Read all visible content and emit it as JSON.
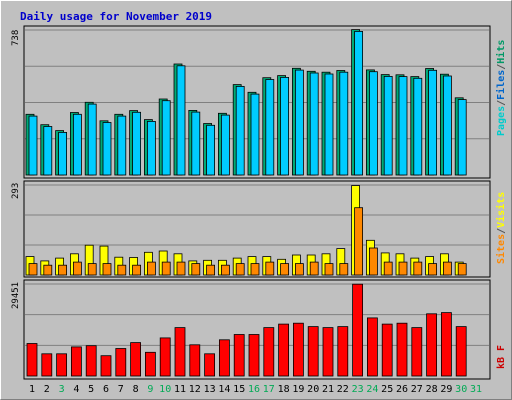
{
  "chart_data": {
    "type": "bar",
    "title": "Daily usage for November 2019",
    "categories": [
      "1",
      "2",
      "3",
      "4",
      "5",
      "6",
      "7",
      "8",
      "9",
      "10",
      "11",
      "12",
      "13",
      "14",
      "15",
      "16",
      "17",
      "18",
      "19",
      "20",
      "21",
      "22",
      "23",
      "24",
      "25",
      "26",
      "27",
      "28",
      "29",
      "30",
      "31"
    ],
    "weekend_days": [
      "3",
      "9",
      "10",
      "16",
      "17",
      "23",
      "24",
      "30",
      "31"
    ],
    "panels": [
      {
        "id": "top",
        "max_label": "738",
        "ylim": [
          0,
          738
        ],
        "grid": true,
        "legend": [
          "Pages",
          "/",
          "Files",
          "/",
          "Hits"
        ],
        "legend_colors": [
          "#00cccc",
          "#555555",
          "#0066cc",
          "#555555",
          "#009966"
        ],
        "series": [
          {
            "name": "Hits",
            "color": "#00aa77",
            "values": [
              309,
              256,
              226,
              318,
              370,
              276,
              309,
              328,
              282,
              387,
              565,
              329,
              262,
              314,
              460,
              421,
              495,
              506,
              543,
              528,
              523,
              532,
              740,
              535,
              511,
              510,
              501,
              542,
              513,
              393,
              null
            ]
          },
          {
            "name": "Files",
            "color": "#00ccff",
            "values": [
              300,
              247,
              217,
              309,
              361,
              267,
              300,
              319,
              273,
              378,
              556,
              320,
              253,
              305,
              451,
              412,
              486,
              497,
              534,
              519,
              514,
              523,
              731,
              526,
              502,
              501,
              492,
              533,
              504,
              384,
              null
            ]
          }
        ]
      },
      {
        "id": "middle",
        "max_label": "293",
        "ylim": [
          0,
          293
        ],
        "grid": true,
        "legend": [
          "Sites",
          "/",
          "Visits"
        ],
        "legend_colors": [
          "#ff8800",
          "#555555",
          "#ffff00"
        ],
        "series": [
          {
            "name": "Visits",
            "color": "#ffff00",
            "values": [
              60,
              46,
              55,
              69,
              97,
              94,
              58,
              57,
              74,
              78,
              69,
              46,
              48,
              48,
              55,
              60,
              60,
              51,
              65,
              65,
              69,
              86,
              291,
              113,
              72,
              69,
              55,
              60,
              69,
              42,
              null
            ]
          },
          {
            "name": "Sites",
            "color": "#ff8800",
            "values": [
              37,
              32,
              32,
              42,
              37,
              37,
              32,
              32,
              42,
              42,
              42,
              37,
              32,
              32,
              37,
              37,
              42,
              37,
              37,
              42,
              37,
              37,
              219,
              88,
              42,
              42,
              42,
              37,
              42,
              37,
              null
            ]
          }
        ]
      },
      {
        "id": "bottom",
        "max_label": "29451",
        "ylim": [
          0,
          29451
        ],
        "grid": true,
        "legend": [
          "kB F"
        ],
        "legend_colors": [
          "#cc0000"
        ],
        "series": [
          {
            "name": "kB F",
            "color": "#ff0000",
            "values": [
              10400,
              7100,
              7100,
              9300,
              9700,
              6500,
              8800,
              10700,
              7600,
              12200,
              15500,
              10000,
              7100,
              11600,
              13300,
              13300,
              15500,
              16600,
              16900,
              15800,
              15500,
              15800,
              29400,
              18600,
              16600,
              16900,
              15500,
              19900,
              20300,
              15800,
              null
            ]
          }
        ]
      }
    ]
  }
}
